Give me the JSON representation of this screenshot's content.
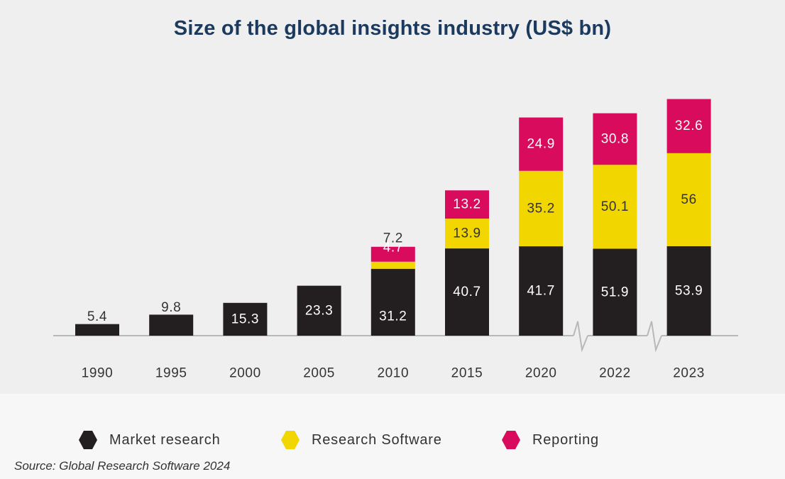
{
  "chart_data": {
    "type": "bar",
    "stacked": true,
    "title": "Size of the global insights industry (US$ bn)",
    "source": "Source: Global Research Software 2024",
    "categories": [
      "1990",
      "1995",
      "2000",
      "2005",
      "2010",
      "2015",
      "2020",
      "2022",
      "2023"
    ],
    "axis_breaks_after": [
      "2020",
      "2022"
    ],
    "series": [
      {
        "name": "Market research",
        "color": "#231f20",
        "values": [
          5.4,
          9.8,
          15.3,
          23.3,
          31.2,
          40.7,
          41.7,
          51.9,
          53.9
        ]
      },
      {
        "name": "Research Software",
        "color": "#f2d600",
        "values": [
          0,
          0,
          0,
          0,
          4.7,
          13.9,
          35.2,
          50.1,
          56.0
        ]
      },
      {
        "name": "Reporting",
        "color": "#d90b5c",
        "values": [
          0,
          0,
          0,
          0,
          7.2,
          13.2,
          24.9,
          30.8,
          32.6
        ]
      }
    ],
    "legend_position": "bottom",
    "grid": false
  }
}
